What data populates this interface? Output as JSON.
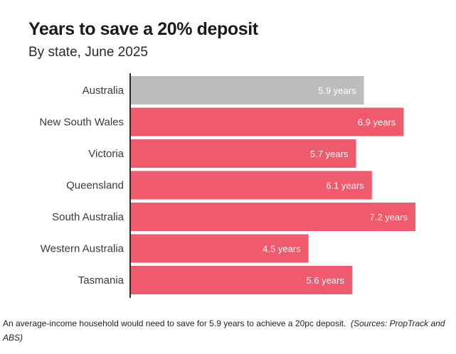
{
  "chart_data": {
    "type": "bar",
    "orientation": "horizontal",
    "title": "Years to save a 20% deposit",
    "subtitle": "By state, June 2025",
    "categories": [
      "Australia",
      "New South Wales",
      "Victoria",
      "Queensland",
      "South Australia",
      "Western Australia",
      "Tasmania"
    ],
    "values": [
      5.9,
      6.9,
      5.7,
      6.1,
      7.2,
      4.5,
      5.6
    ],
    "value_labels": [
      "5.9 years",
      "6.9 years",
      "5.7 years",
      "6.1 years",
      "7.2 years",
      "4.5 years",
      "5.6 years"
    ],
    "xlim": [
      0,
      7.2
    ],
    "grid": false,
    "colors": {
      "highlight": "#bdbdbb",
      "default": "#ef5a6c",
      "axis": "#2b2b2b"
    },
    "highlight_category": "Australia"
  },
  "caption": {
    "text": "An average-income household would need to save for 5.9 years to achieve a 20pc deposit.",
    "source": "(Sources: PropTrack and ABS)"
  }
}
